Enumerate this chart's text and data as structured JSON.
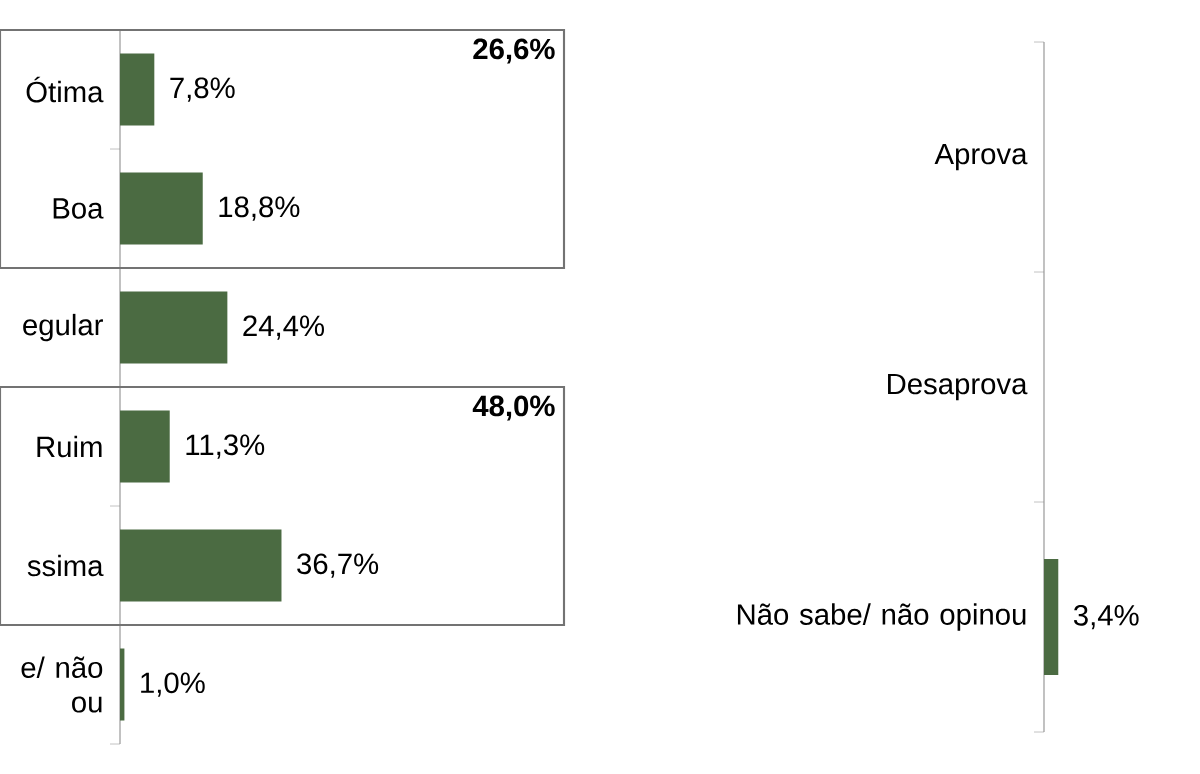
{
  "chart_data": [
    {
      "type": "bar",
      "orientation": "horizontal",
      "categories": [
        "Ótima",
        "Boa",
        "egular",
        "Ruim",
        "ssima",
        "e/ não ou"
      ],
      "values": [
        7.8,
        18.8,
        24.4,
        11.3,
        36.7,
        1.0
      ],
      "value_labels": [
        "7,8%",
        "18,8%",
        "24,4%",
        "11,3%",
        "36,7%",
        "1,0%"
      ],
      "color": "#4b6b42",
      "annotations": [
        "26,6%",
        "48,0%"
      ]
    },
    {
      "type": "bar",
      "orientation": "horizontal",
      "categories": [
        "Aprova",
        "Desaprova",
        "Não sabe/ não opinou"
      ],
      "values": [
        null,
        null,
        3.4
      ],
      "value_labels": [
        null,
        null,
        "3,4%"
      ],
      "color": "#4b6b42"
    }
  ]
}
